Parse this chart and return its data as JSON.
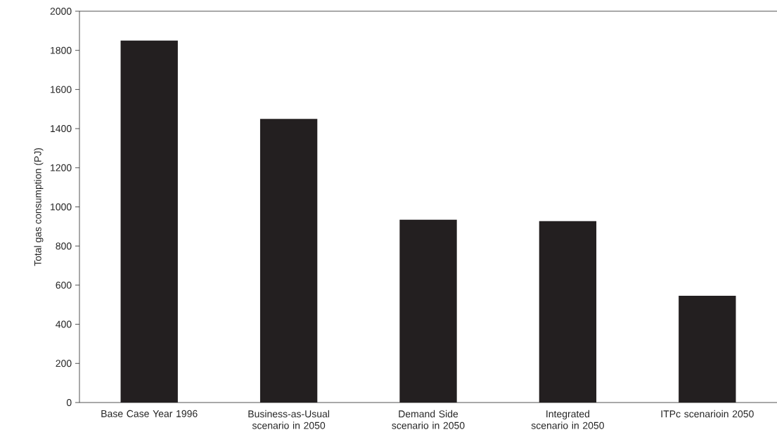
{
  "chart_data": {
    "type": "bar",
    "ylabel": "Total gas consumption (PJ)",
    "categories": [
      "Base Case Year 1996",
      "Business-as-Usual scenario in 2050",
      "Demand Side scenario in 2050",
      "Integrated scenario in 2050",
      "ITPc scenarioin 2050"
    ],
    "values": [
      1850,
      1450,
      934,
      927,
      546
    ],
    "color": "#231f20",
    "ylim": [
      0,
      2000
    ],
    "yticks": [
      0,
      200,
      400,
      600,
      800,
      1000,
      1200,
      1400,
      1600,
      1800,
      2000
    ],
    "grid": false
  }
}
